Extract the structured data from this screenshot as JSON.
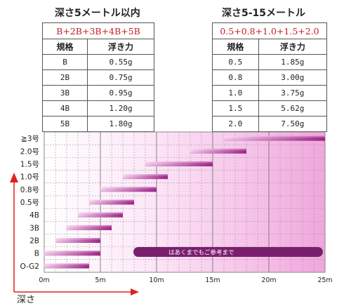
{
  "table_left": {
    "title": "深さ5メートル以内",
    "formula": "B+2B+3B+4B+5B",
    "headers": [
      "規格",
      "浮き力"
    ],
    "rows": [
      [
        "B",
        "0.55g"
      ],
      [
        "2B",
        "0.75g"
      ],
      [
        "3B",
        "0.95g"
      ],
      [
        "4B",
        "1.20g"
      ],
      [
        "5B",
        "1.80g"
      ]
    ]
  },
  "table_right": {
    "title": "深さ5-15メートル",
    "formula": "0.5+0.8+1.0+1.5+2.0",
    "headers": [
      "規格",
      "浮き力"
    ],
    "rows": [
      [
        "0.5",
        "1.85g"
      ],
      [
        "0.8",
        "3.00g"
      ],
      [
        "1.0",
        "3.75g"
      ],
      [
        "1.5",
        "5.62g"
      ],
      [
        "2.0",
        "7.50g"
      ]
    ]
  },
  "chart_data": {
    "type": "bar",
    "orientation": "horizontal-range",
    "categories": [
      "O-G2",
      "B",
      "2B",
      "3B",
      "4B",
      "0.5号",
      "0.8号",
      "1.0号",
      "1.5号",
      "2.0号",
      "≧3号"
    ],
    "series": [
      {
        "values": [
          [
            0,
            4
          ],
          [
            0,
            5
          ],
          [
            1,
            5
          ],
          [
            2,
            6
          ],
          [
            3,
            7
          ],
          [
            4,
            8
          ],
          [
            5,
            10
          ],
          [
            7,
            11
          ],
          [
            9,
            15
          ],
          [
            13,
            18
          ],
          [
            16,
            25
          ]
        ]
      }
    ],
    "x_ticks": [
      "0m",
      "5m",
      "10m",
      "15m",
      "20m",
      "25m"
    ],
    "xlim": [
      0,
      25
    ],
    "xlabel": "深さ",
    "note": "はあくまでもご参考まで",
    "grid": true,
    "colors": {
      "bar": "#a01f8a",
      "bar_light": "#f6c8ec",
      "note_bg": "#7a1f6e",
      "axis_arrow": "#e02020"
    }
  }
}
